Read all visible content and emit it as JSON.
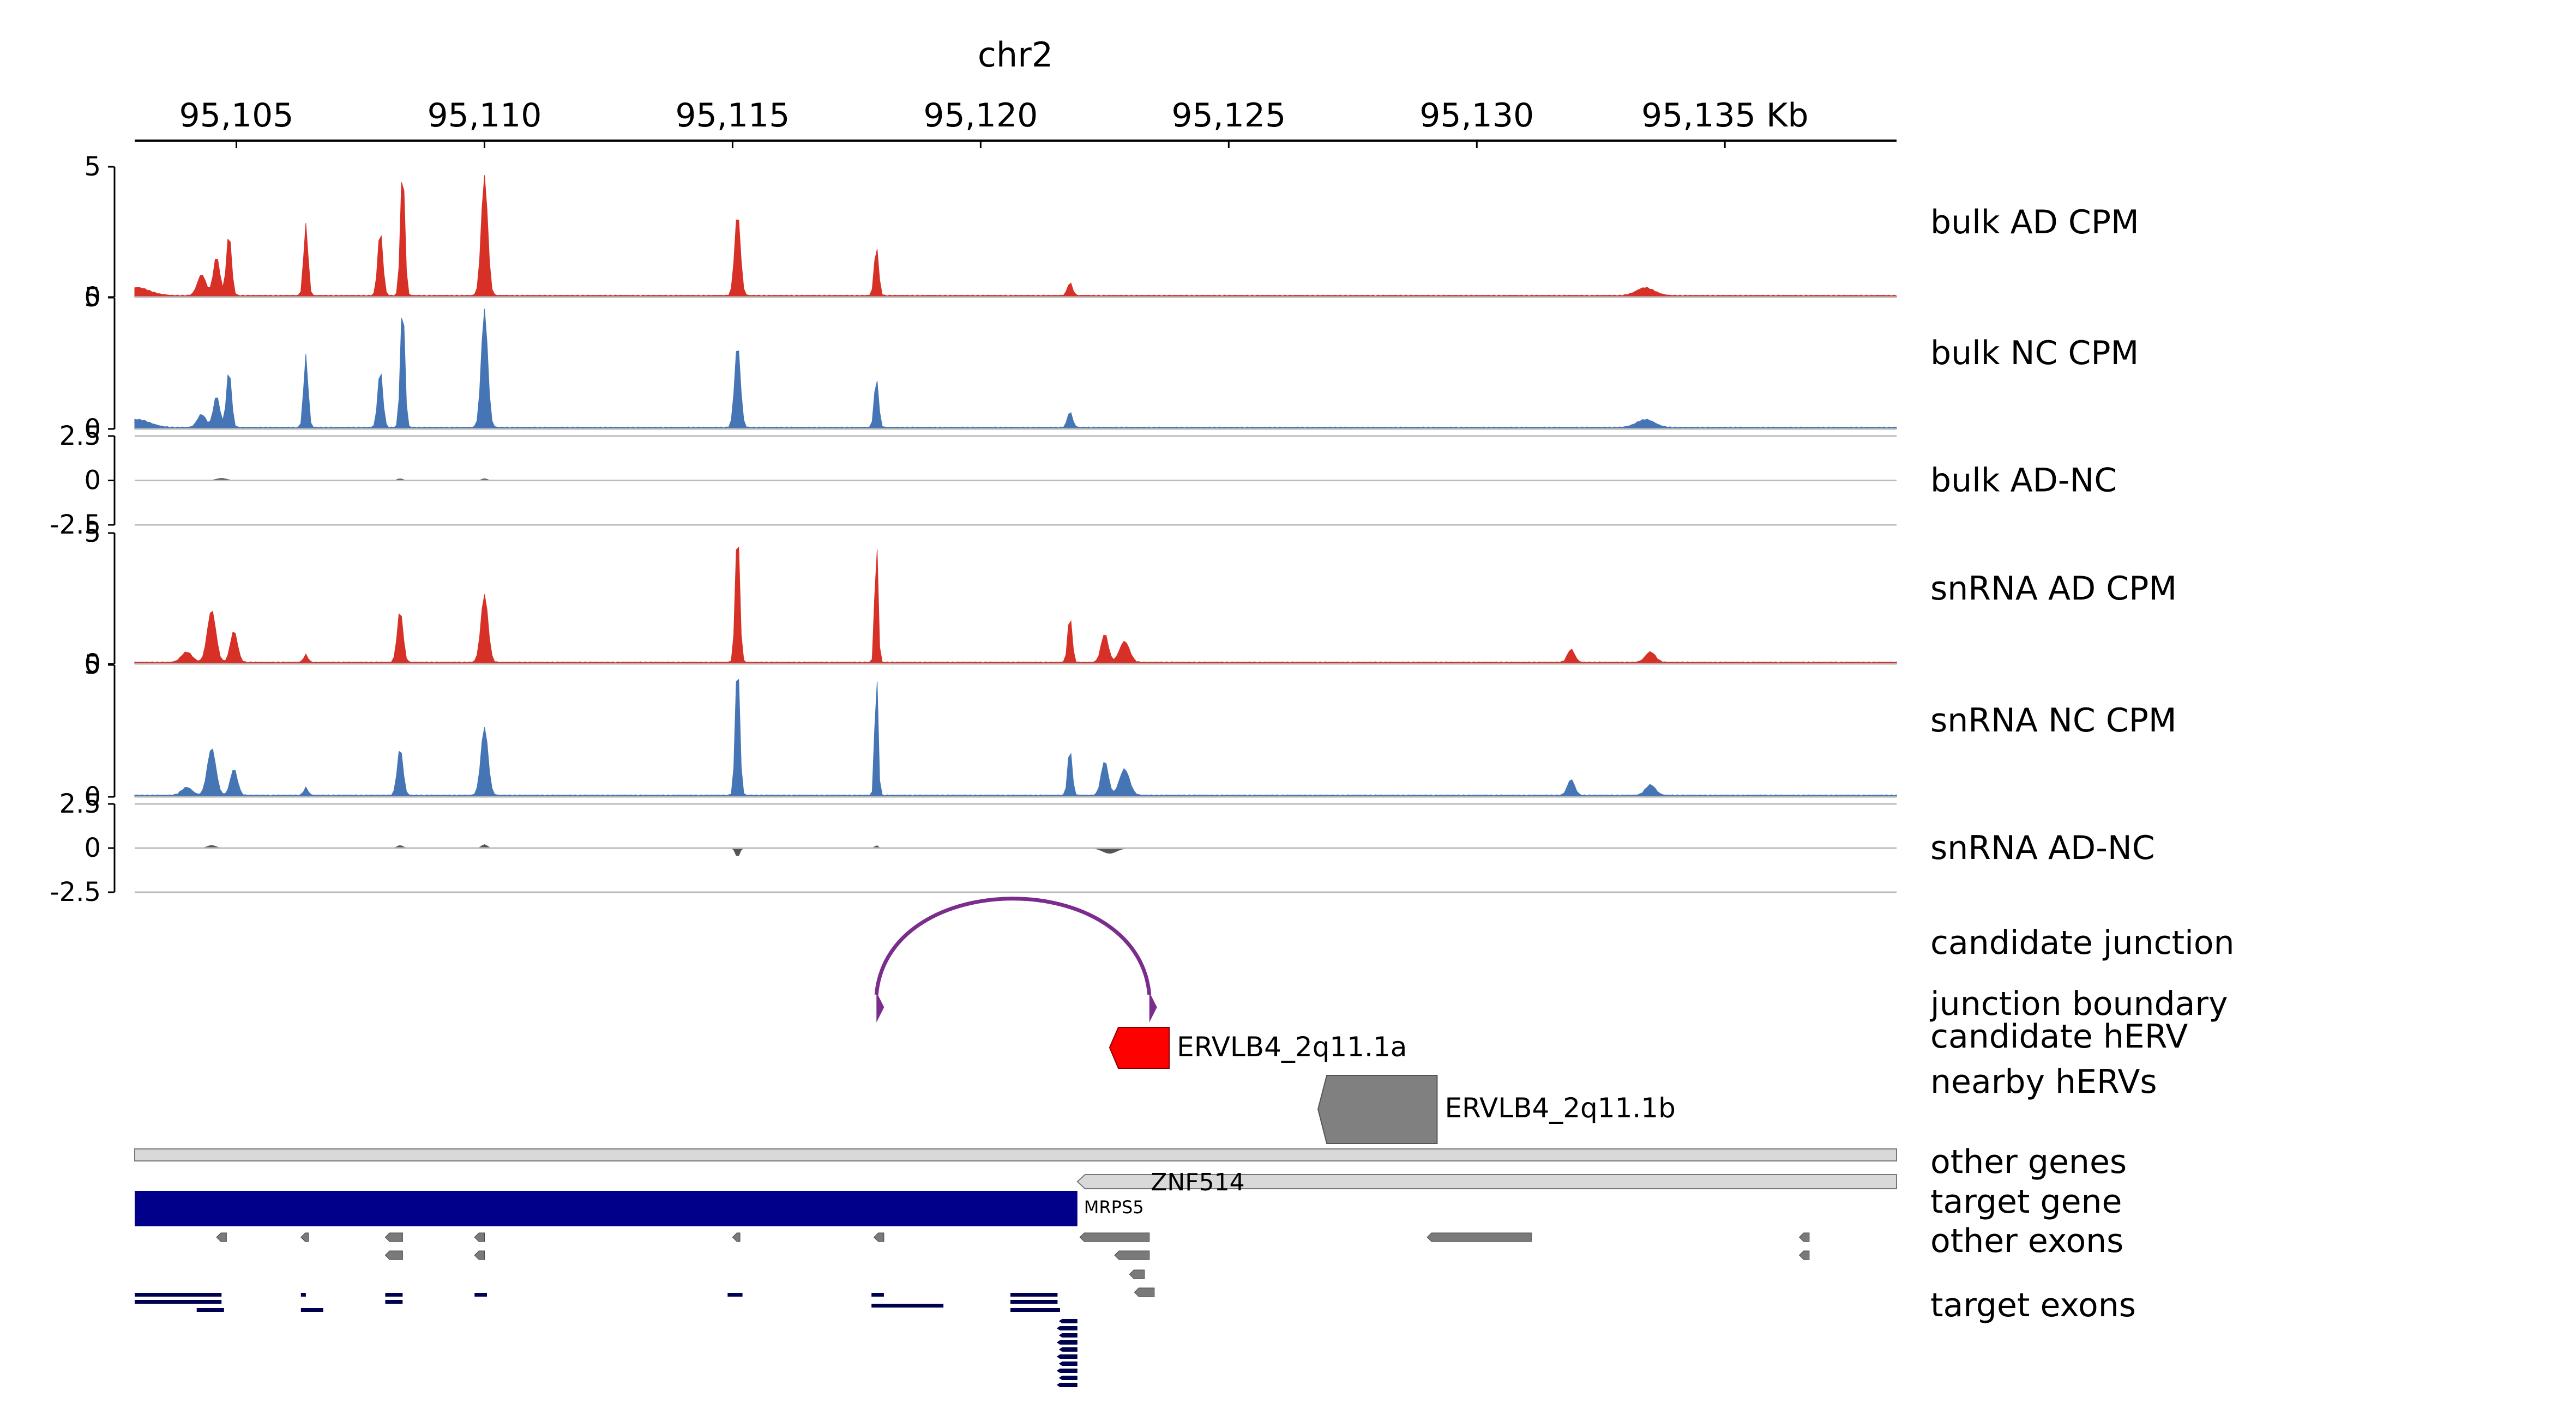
{
  "chart_data": {
    "type": "area",
    "chromosome": "chr2",
    "xlim": [
      95102950,
      95138460
    ],
    "x_ticks": [
      {
        "pos": 95105000,
        "label": "95,105"
      },
      {
        "pos": 95110000,
        "label": "95,110"
      },
      {
        "pos": 95115000,
        "label": "95,115"
      },
      {
        "pos": 95120000,
        "label": "95,120"
      },
      {
        "pos": 95125000,
        "label": "95,125"
      },
      {
        "pos": 95130000,
        "label": "95,130"
      },
      {
        "pos": 95135000,
        "label": "95,135 Kb"
      }
    ],
    "tracks": [
      {
        "name": "bulk AD CPM",
        "color": "#d73027",
        "ylim": [
          0,
          5
        ],
        "ytick_labels": [
          "5",
          "0"
        ],
        "peaks": [
          [
            95103000,
            0.3,
            350
          ],
          [
            95104300,
            0.8,
            120
          ],
          [
            95104600,
            1.5,
            90
          ],
          [
            95104850,
            2.4,
            70
          ],
          [
            95106400,
            2.8,
            60
          ],
          [
            95107900,
            2.5,
            70
          ],
          [
            95108350,
            5.0,
            60
          ],
          [
            95110000,
            4.6,
            90
          ],
          [
            95115100,
            3.2,
            80
          ],
          [
            95117900,
            1.9,
            60
          ],
          [
            95121800,
            0.5,
            70
          ],
          [
            95133400,
            0.3,
            250
          ]
        ]
      },
      {
        "name": "bulk NC CPM",
        "color": "#4575b4",
        "ylim": [
          0,
          5
        ],
        "ytick_labels": [
          "5",
          "0"
        ],
        "peaks": [
          [
            95103000,
            0.3,
            350
          ],
          [
            95104300,
            0.5,
            120
          ],
          [
            95104600,
            1.2,
            90
          ],
          [
            95104850,
            2.2,
            70
          ],
          [
            95106400,
            2.8,
            60
          ],
          [
            95107900,
            2.2,
            70
          ],
          [
            95108350,
            4.8,
            60
          ],
          [
            95110000,
            4.5,
            90
          ],
          [
            95115100,
            3.2,
            80
          ],
          [
            95117900,
            1.9,
            60
          ],
          [
            95121800,
            0.6,
            70
          ],
          [
            95133400,
            0.3,
            250
          ]
        ]
      },
      {
        "name": "bulk AD-NC",
        "color": "#555555",
        "ylim": [
          -2.5,
          2.5
        ],
        "ytick_labels": [
          "2.5",
          "0",
          "-2.5"
        ],
        "peaks": [
          [
            95104700,
            0.12,
            150
          ],
          [
            95108300,
            0.1,
            80
          ],
          [
            95110000,
            0.1,
            80
          ]
        ]
      },
      {
        "name": "snRNA AD CPM",
        "color": "#d73027",
        "ylim": [
          0,
          5
        ],
        "ytick_labels": [
          "5",
          "0"
        ],
        "peaks": [
          [
            95104000,
            0.4,
            150
          ],
          [
            95104500,
            2.0,
            120
          ],
          [
            95104950,
            1.2,
            100
          ],
          [
            95106400,
            0.3,
            60
          ],
          [
            95108300,
            2.0,
            80
          ],
          [
            95110000,
            2.6,
            100
          ],
          [
            95115100,
            5.2,
            60
          ],
          [
            95117900,
            4.8,
            45
          ],
          [
            95121800,
            1.8,
            60
          ],
          [
            95122500,
            1.1,
            100
          ],
          [
            95122900,
            0.8,
            140
          ],
          [
            95131900,
            0.5,
            100
          ],
          [
            95133500,
            0.4,
            140
          ]
        ]
      },
      {
        "name": "snRNA NC CPM",
        "color": "#4575b4",
        "ylim": [
          0,
          5
        ],
        "ytick_labels": [
          "5",
          "0"
        ],
        "peaks": [
          [
            95104000,
            0.3,
            150
          ],
          [
            95104500,
            1.8,
            120
          ],
          [
            95104950,
            1.0,
            100
          ],
          [
            95106400,
            0.3,
            60
          ],
          [
            95108300,
            1.8,
            80
          ],
          [
            95110000,
            2.6,
            100
          ],
          [
            95115100,
            5.2,
            60
          ],
          [
            95117900,
            4.8,
            45
          ],
          [
            95121800,
            1.8,
            60
          ],
          [
            95122500,
            1.3,
            100
          ],
          [
            95122900,
            1.0,
            140
          ],
          [
            95131900,
            0.6,
            100
          ],
          [
            95133500,
            0.4,
            140
          ]
        ]
      },
      {
        "name": "snRNA AD-NC",
        "color": "#555555",
        "ylim": [
          -2.5,
          2.5
        ],
        "ytick_labels": [
          "2.5",
          "0",
          "-2.5"
        ],
        "peaks": [
          [
            95104500,
            0.15,
            120
          ],
          [
            95108300,
            0.15,
            80
          ],
          [
            95110000,
            0.2,
            80
          ],
          [
            95115100,
            -0.5,
            60
          ],
          [
            95117900,
            0.15,
            45
          ],
          [
            95122600,
            -0.3,
            200
          ]
        ]
      }
    ],
    "annotation_tracks": [
      {
        "name": "candidate junction",
        "arc": [
          95117900,
          95123400
        ],
        "color": "#7b2d8e"
      },
      {
        "name": "junction boundary",
        "color": "#7b2d8e"
      },
      {
        "name": "candidate hERV",
        "feature": {
          "label": "ERVLB4_2q11.1a",
          "start": 95122600,
          "end": 95123800,
          "color": "#ff0000"
        }
      },
      {
        "name": "nearby hERVs",
        "feature": {
          "label": "ERVLB4_2q11.1b",
          "start": 95126800,
          "end": 95129200,
          "color": "#808080"
        }
      },
      {
        "name": "other genes",
        "feature": {
          "label": "ZNF514",
          "start": 95121950,
          "end": 95138460
        }
      },
      {
        "name": "target gene",
        "feature": {
          "label": "MRPS5",
          "start": 95102950,
          "end": 95121950,
          "color": "#00008b"
        }
      },
      {
        "name": "other exons"
      },
      {
        "name": "target exons",
        "color": "#000050"
      }
    ]
  }
}
